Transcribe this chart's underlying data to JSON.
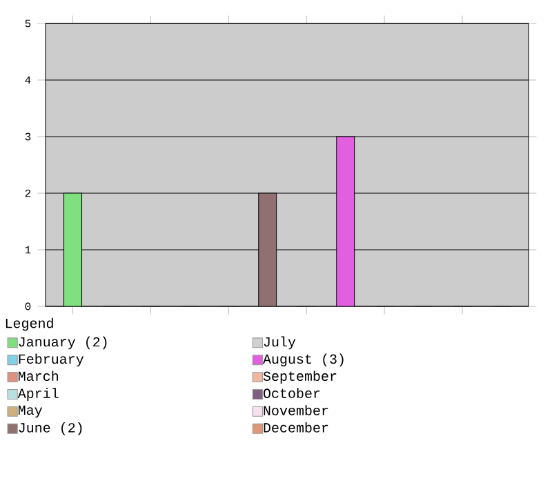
{
  "chart_data": {
    "type": "bar",
    "legend_title": "Legend",
    "categories": [
      null,
      null,
      null,
      null,
      null,
      null,
      null,
      null,
      null,
      null,
      null,
      null
    ],
    "series": [
      {
        "name": "January (2)",
        "color": "#80e080",
        "values": [
          2,
          null,
          null,
          null,
          null,
          null,
          null,
          null,
          null,
          null,
          null,
          null
        ]
      },
      {
        "name": "February",
        "color": "#80d0e8",
        "values": [
          null,
          0,
          null,
          null,
          null,
          null,
          null,
          null,
          null,
          null,
          null,
          null
        ]
      },
      {
        "name": "March",
        "color": "#e09080",
        "values": [
          null,
          null,
          0,
          null,
          null,
          null,
          null,
          null,
          null,
          null,
          null,
          null
        ]
      },
      {
        "name": "April",
        "color": "#b8e0e0",
        "values": [
          null,
          null,
          null,
          0,
          null,
          null,
          null,
          null,
          null,
          null,
          null,
          null
        ]
      },
      {
        "name": "May",
        "color": "#d0b080",
        "values": [
          null,
          null,
          null,
          null,
          0,
          null,
          null,
          null,
          null,
          null,
          null,
          null
        ]
      },
      {
        "name": "June (2)",
        "color": "#907070",
        "values": [
          null,
          null,
          null,
          null,
          null,
          2,
          null,
          null,
          null,
          null,
          null,
          null
        ]
      },
      {
        "name": "July",
        "color": "#d0d0d0",
        "values": [
          null,
          null,
          null,
          null,
          null,
          null,
          0,
          null,
          null,
          null,
          null,
          null
        ]
      },
      {
        "name": "August (3)",
        "color": "#e060e0",
        "values": [
          null,
          null,
          null,
          null,
          null,
          null,
          null,
          3,
          null,
          null,
          null,
          null
        ]
      },
      {
        "name": "September",
        "color": "#f0b8a0",
        "values": [
          null,
          null,
          null,
          null,
          null,
          null,
          null,
          null,
          0,
          null,
          null,
          null
        ]
      },
      {
        "name": "October",
        "color": "#806080",
        "values": [
          null,
          null,
          null,
          null,
          null,
          null,
          null,
          null,
          null,
          0,
          null,
          null
        ]
      },
      {
        "name": "November",
        "color": "#f8e0f0",
        "values": [
          null,
          null,
          null,
          null,
          null,
          null,
          null,
          null,
          null,
          null,
          0,
          null
        ]
      },
      {
        "name": "December",
        "color": "#e09878",
        "values": [
          null,
          null,
          null,
          null,
          null,
          null,
          null,
          null,
          null,
          null,
          null,
          0
        ]
      }
    ],
    "ylim": [
      0,
      5
    ],
    "yticks": [
      0,
      1,
      2,
      3,
      4,
      5
    ],
    "grid": "y",
    "legend": "bottom"
  }
}
